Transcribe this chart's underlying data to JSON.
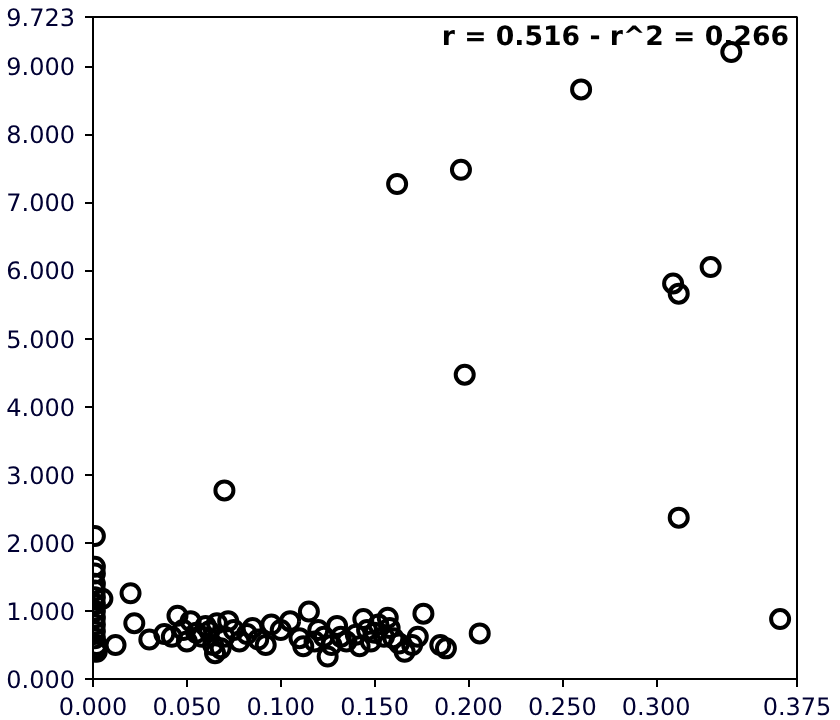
{
  "chart_data": {
    "type": "scatter",
    "marker": "circle",
    "grid": false,
    "annotations": [
      "r = 0.516 - r^2 = 0.266"
    ],
    "xlim": [
      0,
      0.375
    ],
    "ylim": [
      0,
      9.723
    ],
    "xticks": [
      {
        "value": 0,
        "label": "0.000"
      },
      {
        "value": 0.05,
        "label": "0.050"
      },
      {
        "value": 0.1,
        "label": "0.100"
      },
      {
        "value": 0.15,
        "label": "0.150"
      },
      {
        "value": 0.2,
        "label": "0.200"
      },
      {
        "value": 0.25,
        "label": "0.250"
      },
      {
        "value": 0.3,
        "label": "0.300"
      },
      {
        "value": 0.375,
        "label": "0.375"
      }
    ],
    "yticks": [
      {
        "value": 0,
        "label": "0.000"
      },
      {
        "value": 1,
        "label": "1.000"
      },
      {
        "value": 2,
        "label": "2.000"
      },
      {
        "value": 3,
        "label": "3.000"
      },
      {
        "value": 4,
        "label": "4.000"
      },
      {
        "value": 5,
        "label": "5.000"
      },
      {
        "value": 6,
        "label": "6.000"
      },
      {
        "value": 7,
        "label": "7.000"
      },
      {
        "value": 8,
        "label": "8.000"
      },
      {
        "value": 9,
        "label": "9.000"
      },
      {
        "value": 9.723,
        "label": "9.723"
      }
    ],
    "series": [
      {
        "color": "#000000",
        "x": [
          0.26,
          0.162,
          0.196,
          0.198,
          0.309,
          0.312,
          0.329,
          0.34,
          0.312,
          0.366,
          0.07,
          0.206,
          0.176,
          0.001,
          0.001,
          0.001,
          0.001,
          0.001,
          0.001,
          0.001,
          0.001,
          0.001,
          0.001,
          0.001,
          0.001,
          0.002,
          0.002,
          0.002,
          0.005,
          0.012,
          0.02,
          0.022,
          0.03,
          0.038,
          0.042,
          0.045,
          0.048,
          0.05,
          0.052,
          0.055,
          0.058,
          0.06,
          0.062,
          0.064,
          0.065,
          0.066,
          0.068,
          0.07,
          0.072,
          0.075,
          0.078,
          0.082,
          0.085,
          0.088,
          0.092,
          0.095,
          0.1,
          0.105,
          0.11,
          0.112,
          0.115,
          0.118,
          0.12,
          0.123,
          0.125,
          0.127,
          0.13,
          0.132,
          0.135,
          0.14,
          0.142,
          0.144,
          0.146,
          0.148,
          0.15,
          0.152,
          0.155,
          0.157,
          0.158,
          0.16,
          0.163,
          0.166,
          0.17,
          0.173,
          0.185,
          0.188
        ],
        "values": [
          8.66,
          7.27,
          7.48,
          4.47,
          5.81,
          5.66,
          6.05,
          9.21,
          2.37,
          0.88,
          2.77,
          0.67,
          0.96,
          2.1,
          1.65,
          1.55,
          1.4,
          1.3,
          1.2,
          1.1,
          1.0,
          0.9,
          0.8,
          0.7,
          0.6,
          0.5,
          0.45,
          0.4,
          1.18,
          0.5,
          1.26,
          0.82,
          0.58,
          0.66,
          0.62,
          0.93,
          0.72,
          0.55,
          0.85,
          0.68,
          0.62,
          0.78,
          0.7,
          0.5,
          0.38,
          0.82,
          0.45,
          0.62,
          0.85,
          0.72,
          0.55,
          0.66,
          0.75,
          0.58,
          0.5,
          0.8,
          0.72,
          0.85,
          0.6,
          0.48,
          0.99,
          0.55,
          0.72,
          0.62,
          0.33,
          0.5,
          0.78,
          0.62,
          0.55,
          0.65,
          0.48,
          0.88,
          0.72,
          0.55,
          0.68,
          0.8,
          0.62,
          0.9,
          0.75,
          0.6,
          0.52,
          0.4,
          0.5,
          0.62,
          0.5,
          0.45
        ]
      }
    ]
  }
}
